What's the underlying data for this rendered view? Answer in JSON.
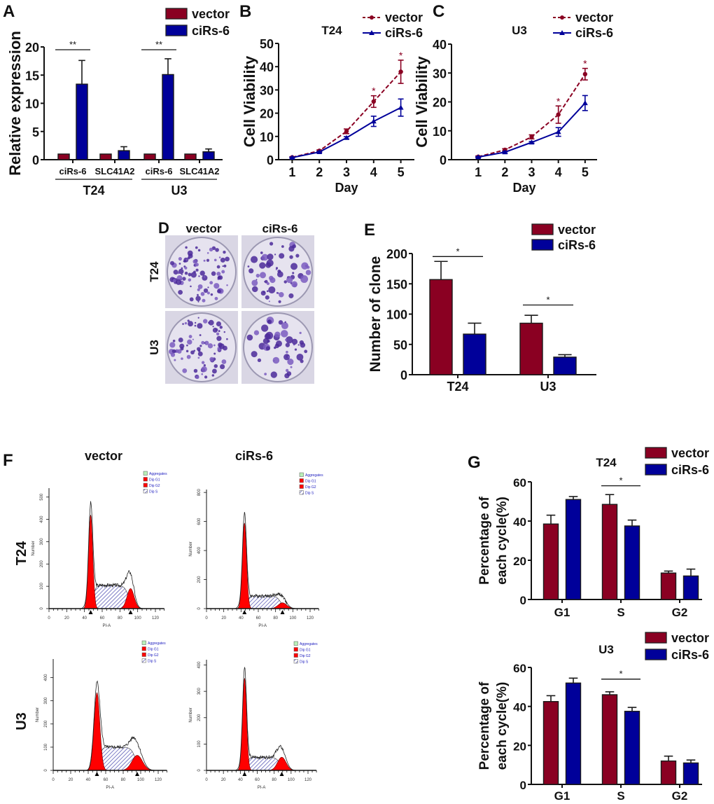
{
  "colors": {
    "vector": "#8a0022",
    "ciRs": "#00009a",
    "flow_red": "#ff0000",
    "flow_hatch": "#3a3aa8",
    "flow_legend_text": "#2020c0",
    "aggregates": "#b8f0b8"
  },
  "chart_data": [
    {
      "id": "A",
      "type": "bar",
      "panel_label": "A",
      "ylabel": "Relative expression",
      "ylim": [
        0,
        20
      ],
      "yticks": [
        0,
        5,
        10,
        15,
        20
      ],
      "categories": [
        "ciRs-6",
        "SLC41A2",
        "ciRs-6",
        "SLC41A2"
      ],
      "groups": [
        {
          "label": "T24",
          "categories": [
            0,
            1
          ]
        },
        {
          "label": "U3",
          "categories": [
            2,
            3
          ]
        }
      ],
      "series": [
        {
          "name": "vector",
          "values": [
            1,
            1,
            1,
            1
          ],
          "errors": [
            0,
            0,
            0,
            0
          ]
        },
        {
          "name": "ciRs-6",
          "values": [
            13.4,
            1.6,
            15.1,
            1.4
          ],
          "errors": [
            4.2,
            0.7,
            2.8,
            0.5
          ]
        }
      ],
      "significance": [
        {
          "category": 0,
          "level": 19.5,
          "text": "**"
        },
        {
          "category": 2,
          "level": 19.5,
          "text": "**"
        }
      ],
      "legend": "top-right"
    },
    {
      "id": "B",
      "type": "line",
      "panel_label": "B",
      "title": "T24",
      "xlabel": "Day",
      "ylabel": "Cell Viability",
      "xlim": [
        0.5,
        5.5
      ],
      "ylim": [
        0,
        50
      ],
      "xticks": [
        1,
        2,
        3,
        4,
        5
      ],
      "yticks": [
        0,
        10,
        20,
        30,
        40,
        50
      ],
      "series": [
        {
          "name": "vector",
          "x": [
            1,
            2,
            3,
            4,
            5
          ],
          "y": [
            1.0,
            3.8,
            12.2,
            25.0,
            37.8
          ],
          "errors": [
            0.3,
            0.4,
            1.0,
            2.5,
            5.0
          ],
          "style": "dashed-circle"
        },
        {
          "name": "ciRs-6",
          "x": [
            1,
            2,
            3,
            4,
            5
          ],
          "y": [
            0.9,
            3.3,
            9.4,
            16.5,
            22.4
          ],
          "errors": [
            0.2,
            0.3,
            0.5,
            2.2,
            3.7
          ],
          "style": "solid-triangle"
        }
      ],
      "significance": [
        {
          "x": 4,
          "text": "*"
        },
        {
          "x": 5,
          "text": "*"
        }
      ],
      "legend": "top-right"
    },
    {
      "id": "C",
      "type": "line",
      "panel_label": "C",
      "title": "U3",
      "xlabel": "Day",
      "ylabel": "Cell Viability",
      "xlim": [
        0.0,
        5.45
      ],
      "ylim": [
        0,
        40
      ],
      "xticks": [
        1,
        2,
        3,
        4,
        5
      ],
      "yticks": [
        0,
        10,
        20,
        30,
        40
      ],
      "series": [
        {
          "name": "vector",
          "x": [
            1,
            2,
            3,
            4,
            5
          ],
          "y": [
            1.0,
            3.4,
            7.9,
            15.6,
            29.6
          ],
          "errors": [
            0.3,
            0.4,
            0.7,
            3.0,
            2.0
          ],
          "style": "dashed-circle"
        },
        {
          "name": "ciRs-6",
          "x": [
            1,
            2,
            3,
            4,
            5
          ],
          "y": [
            0.9,
            2.6,
            6.0,
            9.6,
            19.6
          ],
          "errors": [
            0.2,
            0.3,
            0.3,
            1.5,
            2.6
          ],
          "style": "solid-triangle"
        }
      ],
      "significance": [
        {
          "x": 4,
          "text": "*"
        },
        {
          "x": 5,
          "text": "*"
        }
      ],
      "legend": "top-right"
    },
    {
      "id": "D",
      "type": "image-grid",
      "panel_label": "D",
      "columns": [
        "vector",
        "ciRs-6"
      ],
      "rows": [
        "T24",
        "U3"
      ],
      "colony_density": [
        [
          0.8,
          0.55
        ],
        [
          0.7,
          0.45
        ]
      ]
    },
    {
      "id": "E",
      "type": "bar",
      "panel_label": "E",
      "ylabel": "Number of clone",
      "ylim": [
        0,
        200
      ],
      "yticks": [
        0,
        50,
        100,
        150,
        200
      ],
      "categories": [
        "T24",
        "U3"
      ],
      "series": [
        {
          "name": "vector",
          "values": [
            157,
            85
          ],
          "errors": [
            30,
            13
          ]
        },
        {
          "name": "ciRs-6",
          "values": [
            67,
            29
          ],
          "errors": [
            18,
            4
          ]
        }
      ],
      "significance": [
        {
          "category": 0,
          "level": 195,
          "text": "*"
        },
        {
          "category": 1,
          "level": 115,
          "text": "*"
        }
      ],
      "legend": "top-right"
    },
    {
      "id": "F",
      "type": "histogram-grid",
      "panel_label": "F",
      "columns": [
        "vector",
        "ciRs-6"
      ],
      "rows": [
        "T24",
        "U3"
      ],
      "xlabel": "PI-A",
      "ylabel": "Number",
      "xticks": [
        0,
        20,
        40,
        60,
        80,
        100,
        120
      ],
      "legend_items": [
        "Aggregates",
        "Dip G1",
        "Dip G2",
        "Dip S"
      ],
      "plots": [
        {
          "row": "T24",
          "column": "vector",
          "ymax": 540,
          "yticks": [
            0,
            100,
            200,
            300,
            400,
            500
          ],
          "g1": {
            "mean": 47,
            "height": 420,
            "sd": 2.4
          },
          "g2": {
            "mean": 92,
            "height": 90,
            "sd": 4
          },
          "s_level": 105
        },
        {
          "row": "T24",
          "column": "ciRs-6",
          "ymax": 820,
          "yticks": [
            0,
            200,
            400,
            600,
            800
          ],
          "g1": {
            "mean": 44,
            "height": 590,
            "sd": 2.4
          },
          "g2": {
            "mean": 88,
            "height": 40,
            "sd": 5
          },
          "s_level": 88
        },
        {
          "row": "U3",
          "column": "vector",
          "ymax": 480,
          "yticks": [
            0,
            100,
            200,
            300,
            400
          ],
          "g1": {
            "mean": 50,
            "height": 335,
            "sd": 3.3
          },
          "g2": {
            "mean": 96,
            "height": 65,
            "sd": 6
          },
          "s_level": 100
        },
        {
          "row": "U3",
          "column": "ciRs-6",
          "ymax": 420,
          "yticks": [
            0,
            100,
            200,
            300,
            400
          ],
          "g1": {
            "mean": 45,
            "height": 350,
            "sd": 2.4
          },
          "g2": {
            "mean": 89,
            "height": 50,
            "sd": 5
          },
          "s_level": 50
        }
      ]
    },
    {
      "id": "G1",
      "type": "bar",
      "panel_label": "G",
      "title": "T24",
      "ylabel_lines": [
        "Percentage of",
        "each cycle(%)"
      ],
      "ylim": [
        0,
        60
      ],
      "yticks": [
        0,
        20,
        40,
        60
      ],
      "categories": [
        "G1",
        "S",
        "G2"
      ],
      "series": [
        {
          "name": "vector",
          "values": [
            38.5,
            48.5,
            13.5
          ],
          "errors": [
            4.5,
            5.0,
            1.0
          ]
        },
        {
          "name": "ciRs-6",
          "values": [
            51.0,
            37.5,
            12.0
          ],
          "errors": [
            1.5,
            3.0,
            3.5
          ]
        }
      ],
      "significance": [
        {
          "category": 1,
          "level": 58,
          "text": "*"
        }
      ],
      "legend": "top-right"
    },
    {
      "id": "G2",
      "type": "bar",
      "panel_label": "",
      "title": "U3",
      "ylabel_lines": [
        "Percentage of",
        "each cycle(%)"
      ],
      "ylim": [
        0,
        60
      ],
      "yticks": [
        0,
        20,
        40,
        60
      ],
      "categories": [
        "G1",
        "S",
        "G2"
      ],
      "series": [
        {
          "name": "vector",
          "values": [
            42.5,
            46.0,
            12.0
          ],
          "errors": [
            3.0,
            1.5,
            2.5
          ]
        },
        {
          "name": "ciRs-6",
          "values": [
            52.0,
            37.5,
            11.0
          ],
          "errors": [
            2.5,
            2.0,
            1.5
          ]
        }
      ],
      "significance": [
        {
          "category": 1,
          "level": 54,
          "text": "*"
        }
      ],
      "legend": "top-right"
    }
  ]
}
